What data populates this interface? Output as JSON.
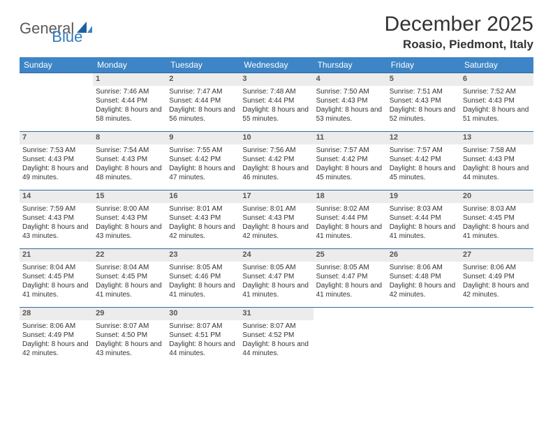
{
  "logo": {
    "text1": "General",
    "text2": "Blue"
  },
  "title": "December 2025",
  "location": "Roasio, Piedmont, Italy",
  "colors": {
    "header_bg": "#3d85c6",
    "daynum_bg": "#ececec",
    "border": "#2f6aa0",
    "text": "#333333",
    "logo_gray": "#5a5a5a",
    "logo_blue": "#2f7bbf"
  },
  "day_headers": [
    "Sunday",
    "Monday",
    "Tuesday",
    "Wednesday",
    "Thursday",
    "Friday",
    "Saturday"
  ],
  "weeks": [
    [
      null,
      {
        "n": "1",
        "rise": "7:46 AM",
        "set": "4:44 PM",
        "dl": "8 hours and 58 minutes."
      },
      {
        "n": "2",
        "rise": "7:47 AM",
        "set": "4:44 PM",
        "dl": "8 hours and 56 minutes."
      },
      {
        "n": "3",
        "rise": "7:48 AM",
        "set": "4:44 PM",
        "dl": "8 hours and 55 minutes."
      },
      {
        "n": "4",
        "rise": "7:50 AM",
        "set": "4:43 PM",
        "dl": "8 hours and 53 minutes."
      },
      {
        "n": "5",
        "rise": "7:51 AM",
        "set": "4:43 PM",
        "dl": "8 hours and 52 minutes."
      },
      {
        "n": "6",
        "rise": "7:52 AM",
        "set": "4:43 PM",
        "dl": "8 hours and 51 minutes."
      }
    ],
    [
      {
        "n": "7",
        "rise": "7:53 AM",
        "set": "4:43 PM",
        "dl": "8 hours and 49 minutes."
      },
      {
        "n": "8",
        "rise": "7:54 AM",
        "set": "4:43 PM",
        "dl": "8 hours and 48 minutes."
      },
      {
        "n": "9",
        "rise": "7:55 AM",
        "set": "4:42 PM",
        "dl": "8 hours and 47 minutes."
      },
      {
        "n": "10",
        "rise": "7:56 AM",
        "set": "4:42 PM",
        "dl": "8 hours and 46 minutes."
      },
      {
        "n": "11",
        "rise": "7:57 AM",
        "set": "4:42 PM",
        "dl": "8 hours and 45 minutes."
      },
      {
        "n": "12",
        "rise": "7:57 AM",
        "set": "4:42 PM",
        "dl": "8 hours and 45 minutes."
      },
      {
        "n": "13",
        "rise": "7:58 AM",
        "set": "4:43 PM",
        "dl": "8 hours and 44 minutes."
      }
    ],
    [
      {
        "n": "14",
        "rise": "7:59 AM",
        "set": "4:43 PM",
        "dl": "8 hours and 43 minutes."
      },
      {
        "n": "15",
        "rise": "8:00 AM",
        "set": "4:43 PM",
        "dl": "8 hours and 43 minutes."
      },
      {
        "n": "16",
        "rise": "8:01 AM",
        "set": "4:43 PM",
        "dl": "8 hours and 42 minutes."
      },
      {
        "n": "17",
        "rise": "8:01 AM",
        "set": "4:43 PM",
        "dl": "8 hours and 42 minutes."
      },
      {
        "n": "18",
        "rise": "8:02 AM",
        "set": "4:44 PM",
        "dl": "8 hours and 41 minutes."
      },
      {
        "n": "19",
        "rise": "8:03 AM",
        "set": "4:44 PM",
        "dl": "8 hours and 41 minutes."
      },
      {
        "n": "20",
        "rise": "8:03 AM",
        "set": "4:45 PM",
        "dl": "8 hours and 41 minutes."
      }
    ],
    [
      {
        "n": "21",
        "rise": "8:04 AM",
        "set": "4:45 PM",
        "dl": "8 hours and 41 minutes."
      },
      {
        "n": "22",
        "rise": "8:04 AM",
        "set": "4:45 PM",
        "dl": "8 hours and 41 minutes."
      },
      {
        "n": "23",
        "rise": "8:05 AM",
        "set": "4:46 PM",
        "dl": "8 hours and 41 minutes."
      },
      {
        "n": "24",
        "rise": "8:05 AM",
        "set": "4:47 PM",
        "dl": "8 hours and 41 minutes."
      },
      {
        "n": "25",
        "rise": "8:05 AM",
        "set": "4:47 PM",
        "dl": "8 hours and 41 minutes."
      },
      {
        "n": "26",
        "rise": "8:06 AM",
        "set": "4:48 PM",
        "dl": "8 hours and 42 minutes."
      },
      {
        "n": "27",
        "rise": "8:06 AM",
        "set": "4:49 PM",
        "dl": "8 hours and 42 minutes."
      }
    ],
    [
      {
        "n": "28",
        "rise": "8:06 AM",
        "set": "4:49 PM",
        "dl": "8 hours and 42 minutes."
      },
      {
        "n": "29",
        "rise": "8:07 AM",
        "set": "4:50 PM",
        "dl": "8 hours and 43 minutes."
      },
      {
        "n": "30",
        "rise": "8:07 AM",
        "set": "4:51 PM",
        "dl": "8 hours and 44 minutes."
      },
      {
        "n": "31",
        "rise": "8:07 AM",
        "set": "4:52 PM",
        "dl": "8 hours and 44 minutes."
      },
      null,
      null,
      null
    ]
  ],
  "labels": {
    "sunrise": "Sunrise:",
    "sunset": "Sunset:",
    "daylight": "Daylight:"
  }
}
